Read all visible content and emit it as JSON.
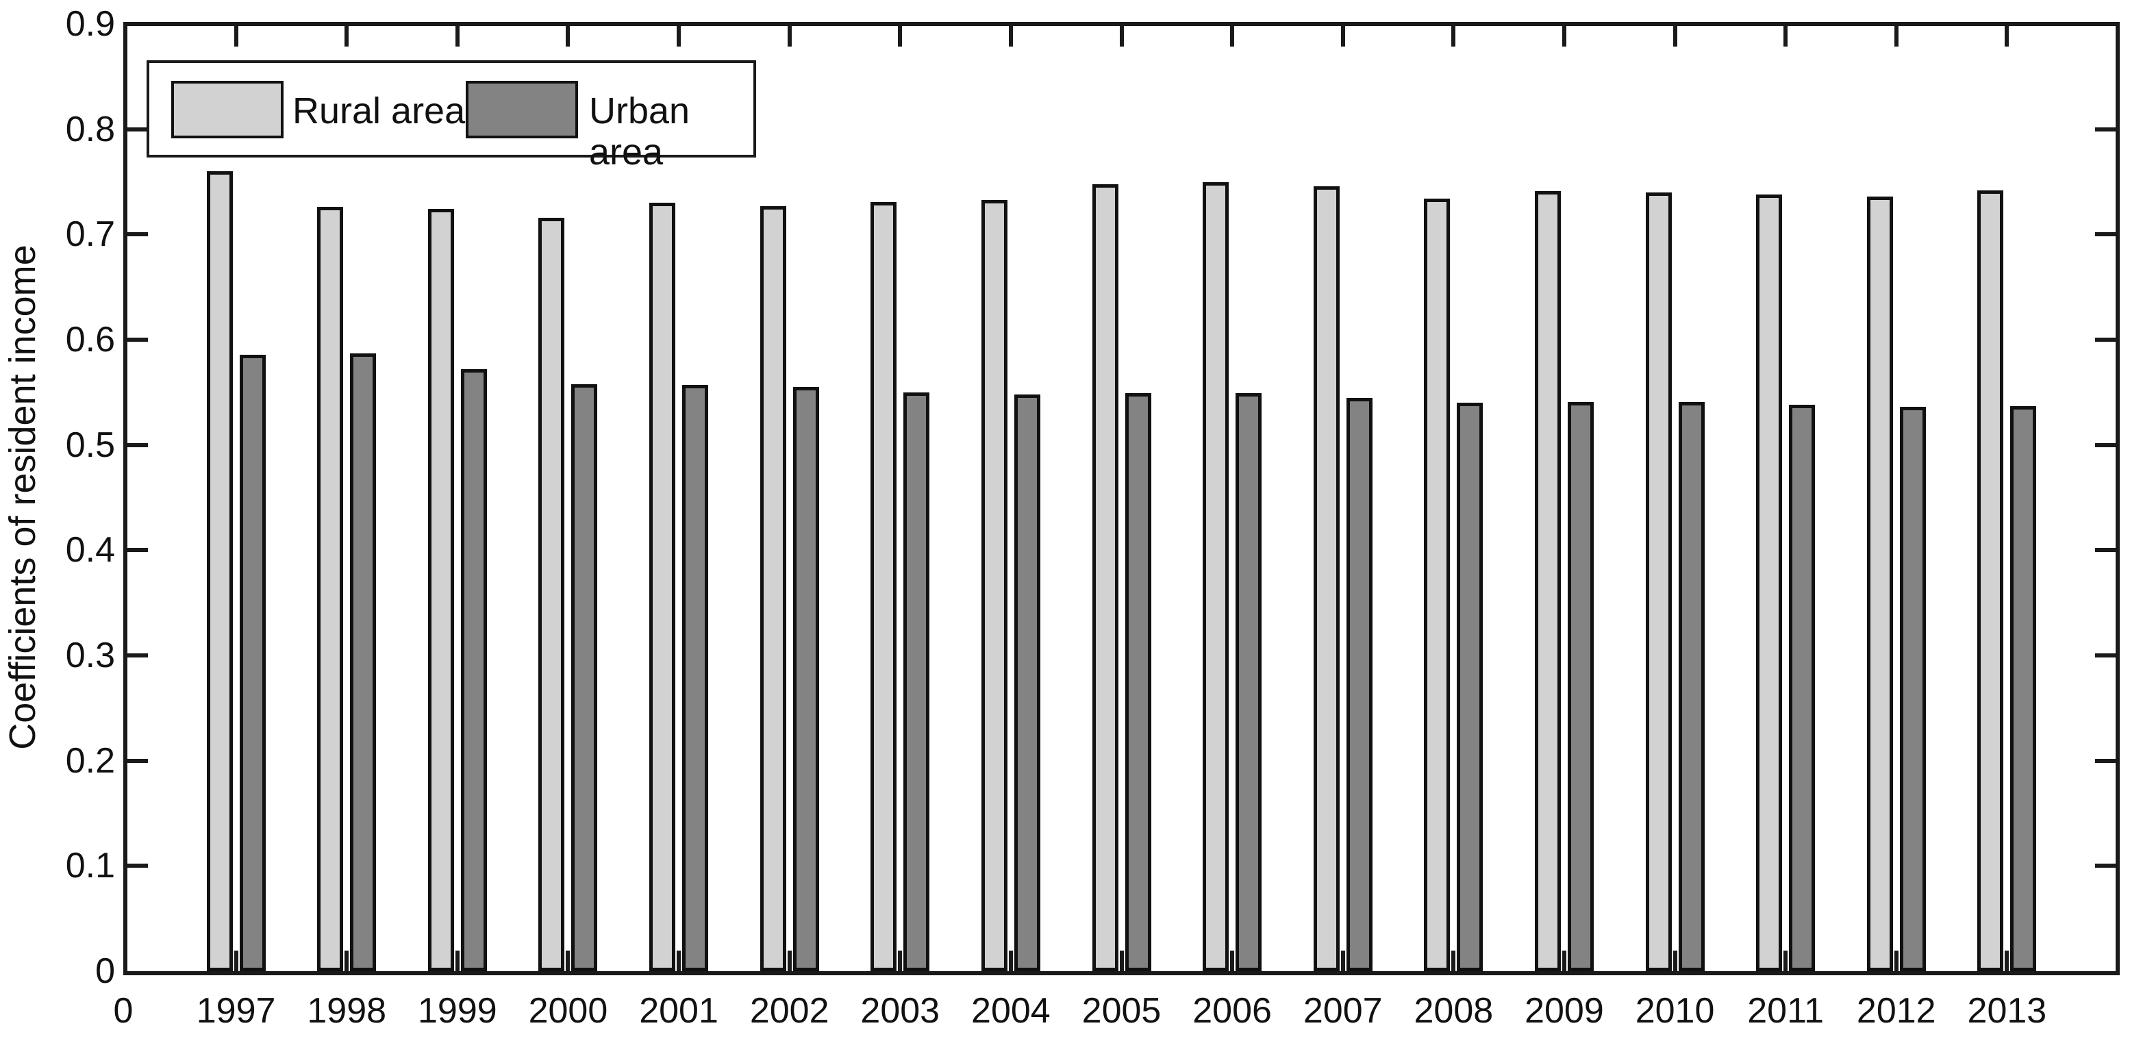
{
  "chart_data": {
    "type": "bar",
    "title": "",
    "xlabel": "",
    "ylabel": "Coefficients of resident income",
    "ylim": [
      0,
      0.9
    ],
    "yticks": [
      0,
      0.1,
      0.2,
      0.3,
      0.4,
      0.5,
      0.6,
      0.7,
      0.8,
      0.9
    ],
    "ytick_labels": [
      "0",
      "0.1",
      "0.2",
      "0.3",
      "0.4",
      "0.5",
      "0.6",
      "0.7",
      "0.8",
      "0.9"
    ],
    "x_origin_label": "0",
    "categories": [
      "1997",
      "1998",
      "1999",
      "2000",
      "2001",
      "2002",
      "2003",
      "2004",
      "2005",
      "2006",
      "2007",
      "2008",
      "2009",
      "2010",
      "2011",
      "2012",
      "2013"
    ],
    "series": [
      {
        "name": "Rural area",
        "color": "#d2d2d2",
        "values": [
          0.76,
          0.726,
          0.724,
          0.716,
          0.73,
          0.727,
          0.731,
          0.733,
          0.748,
          0.75,
          0.746,
          0.734,
          0.741,
          0.74,
          0.738,
          0.736,
          0.742
        ]
      },
      {
        "name": "Urban area",
        "color": "#838383",
        "values": [
          0.586,
          0.587,
          0.572,
          0.558,
          0.557,
          0.555,
          0.55,
          0.548,
          0.549,
          0.549,
          0.545,
          0.54,
          0.541,
          0.541,
          0.538,
          0.536,
          0.537
        ]
      }
    ],
    "legend_position": "top-left",
    "grid": false,
    "bar_edge_color": "#111111",
    "axis_color": "#1a1a1a",
    "background": "#ffffff"
  }
}
